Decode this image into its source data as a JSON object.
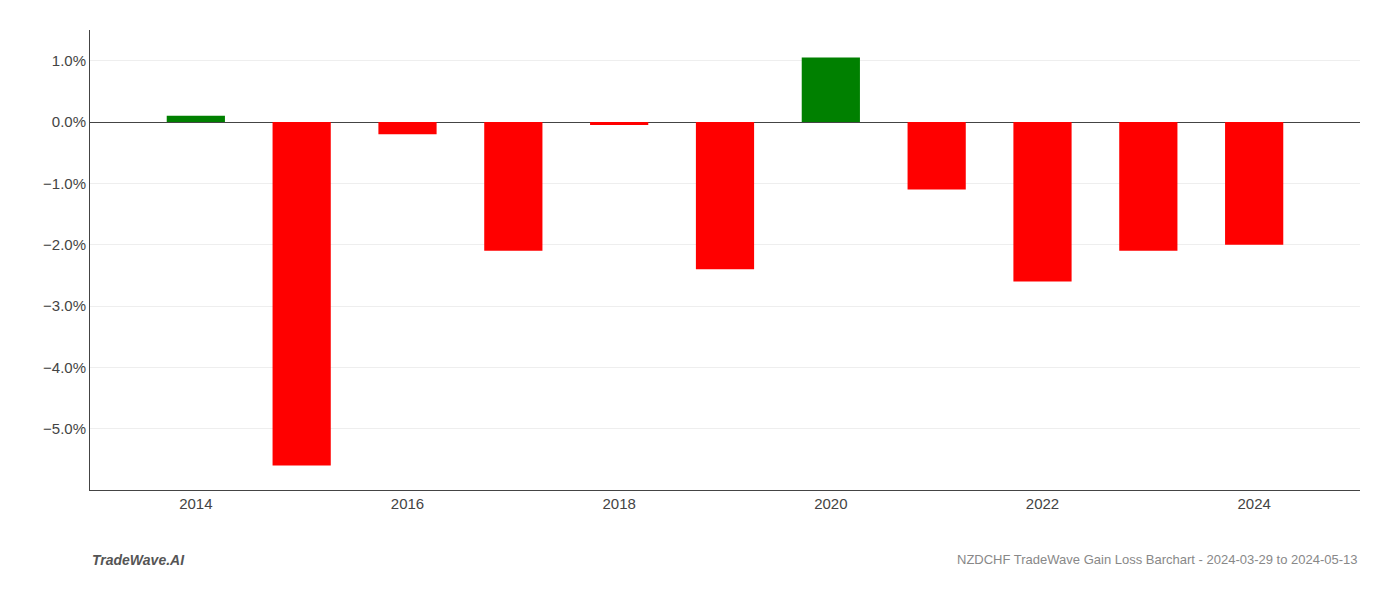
{
  "chart_data": {
    "type": "bar",
    "x": [
      2014,
      2015,
      2016,
      2017,
      2018,
      2019,
      2020,
      2021,
      2022,
      2023,
      2024
    ],
    "values": [
      0.1,
      -5.6,
      -0.2,
      -2.1,
      -0.05,
      -2.4,
      1.05,
      -1.1,
      -2.6,
      -2.1,
      -2.0
    ],
    "colors": [
      "#008000",
      "#ff0000",
      "#ff0000",
      "#ff0000",
      "#ff0000",
      "#ff0000",
      "#008000",
      "#ff0000",
      "#ff0000",
      "#ff0000",
      "#ff0000"
    ],
    "xlim": [
      2013.0,
      2025.0
    ],
    "ylim": [
      -6.0,
      1.5
    ],
    "xticks": [
      2014,
      2016,
      2018,
      2020,
      2022,
      2024
    ],
    "yticks": [
      {
        "value": 1.0,
        "label": "1.0%"
      },
      {
        "value": 0.0,
        "label": "0.0%"
      },
      {
        "value": -1.0,
        "label": "−1.0%"
      },
      {
        "value": -2.0,
        "label": "−2.0%"
      },
      {
        "value": -3.0,
        "label": "−3.0%"
      },
      {
        "value": -4.0,
        "label": "−4.0%"
      },
      {
        "value": -5.0,
        "label": "−5.0%"
      }
    ],
    "grid": "y",
    "annotations": [
      "TradeWave.AI",
      "NZDCHF TradeWave Gain Loss Barchart - 2024-03-29 to 2024-05-13"
    ]
  }
}
